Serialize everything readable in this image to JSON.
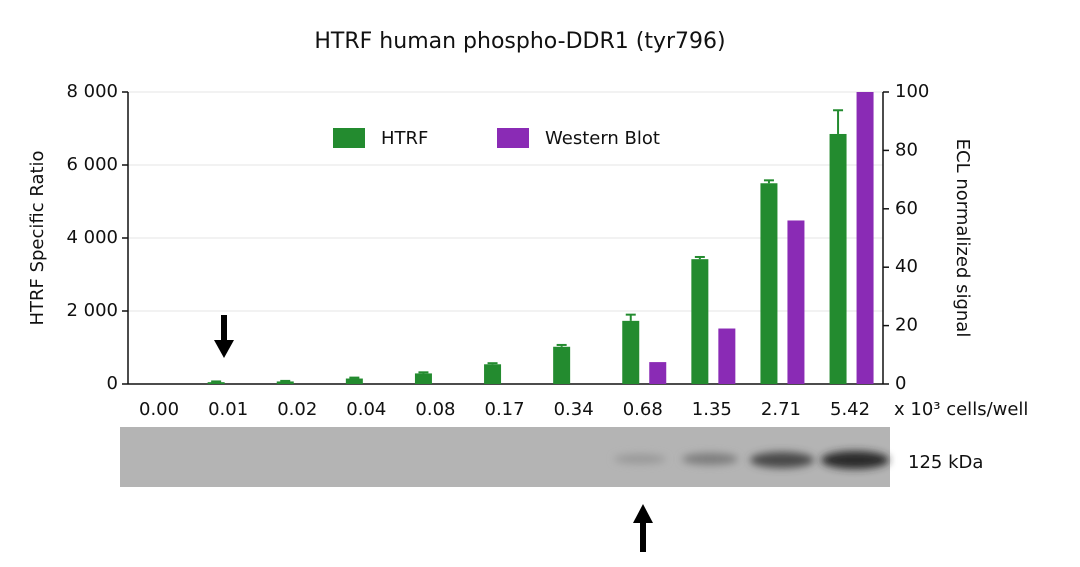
{
  "chart_data": {
    "type": "bar",
    "title": "HTRF human phospho-DDR1 (tyr796)",
    "y_label": "HTRF Specific Ratio",
    "y2_label": "ECL normalized signal",
    "x_label": "x 10³ cells/well",
    "blot_label": "125 kDa",
    "categories": [
      "0.00",
      "0.01",
      "0.02",
      "0.04",
      "0.08",
      "0.17",
      "0.34",
      "0.68",
      "1.35",
      "2.71",
      "5.42"
    ],
    "series": [
      {
        "name": "HTRF",
        "color": "#238b2f",
        "values": [
          null,
          50,
          70,
          150,
          290,
          540,
          1020,
          1730,
          3420,
          5500,
          6850
        ],
        "errors": [
          null,
          20,
          15,
          25,
          30,
          30,
          50,
          170,
          60,
          80,
          650
        ]
      },
      {
        "name": "Western Blot",
        "color": "#8a2bb5",
        "axis": "y2",
        "values": [
          null,
          null,
          null,
          null,
          null,
          null,
          null,
          7.5,
          19,
          56,
          100
        ]
      }
    ],
    "ylim": [
      0,
      8000
    ],
    "yticks": [
      0,
      {
        "value": 2000,
        "label": "2 000"
      },
      {
        "value": 4000,
        "label": "4 000"
      },
      {
        "value": 6000,
        "label": "6 000"
      },
      {
        "value": 8000,
        "label": "8 000"
      }
    ],
    "y2lim": [
      0,
      100
    ],
    "y2ticks": [
      0,
      20,
      40,
      60,
      80,
      100
    ],
    "grid": true
  }
}
